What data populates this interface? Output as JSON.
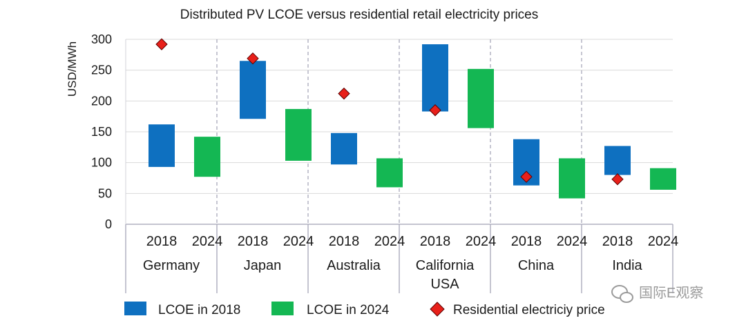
{
  "chart_data": {
    "type": "floating-bar",
    "title": "Distributed PV LCOE versus residential retail electricity prices",
    "ylabel": "USD/MWh",
    "ylim": [
      0,
      300
    ],
    "yticks": [
      0,
      50,
      100,
      150,
      200,
      250,
      300
    ],
    "grid": true,
    "legend_position": "bottom",
    "groups": [
      {
        "label": "Germany",
        "label_lines": [
          "Germany"
        ],
        "subcategories": [
          "2018",
          "2024"
        ],
        "lcoe_2018": [
          93,
          162
        ],
        "lcoe_2024": [
          77,
          142
        ],
        "residential_price": 292
      },
      {
        "label": "Japan",
        "label_lines": [
          "Japan"
        ],
        "subcategories": [
          "2018",
          "2024"
        ],
        "lcoe_2018": [
          171,
          265
        ],
        "lcoe_2024": [
          103,
          187
        ],
        "residential_price": 269
      },
      {
        "label": "Australia",
        "label_lines": [
          "Australia"
        ],
        "subcategories": [
          "2018",
          "2024"
        ],
        "lcoe_2018": [
          97,
          148
        ],
        "lcoe_2024": [
          60,
          107
        ],
        "residential_price": 212
      },
      {
        "label": "California USA",
        "label_lines": [
          "California",
          "USA"
        ],
        "subcategories": [
          "2018",
          "2024"
        ],
        "lcoe_2018": [
          183,
          292
        ],
        "lcoe_2024": [
          156,
          252
        ],
        "residential_price": 185
      },
      {
        "label": "China",
        "label_lines": [
          "China"
        ],
        "subcategories": [
          "2018",
          "2024"
        ],
        "lcoe_2018": [
          63,
          138
        ],
        "lcoe_2024": [
          42,
          107
        ],
        "residential_price": 77
      },
      {
        "label": "India",
        "label_lines": [
          "India"
        ],
        "subcategories": [
          "2018",
          "2024"
        ],
        "lcoe_2018": [
          80,
          127
        ],
        "lcoe_2024": [
          56,
          91
        ],
        "residential_price": 73
      }
    ],
    "series": [
      {
        "name": "LCOE in 2018",
        "color": "#0e70c0"
      },
      {
        "name": "LCOE in 2024",
        "color": "#14b753"
      },
      {
        "name": "Residential electriciy price",
        "color": "#e8201a"
      }
    ]
  },
  "watermark": {
    "text": "国际E观察"
  }
}
